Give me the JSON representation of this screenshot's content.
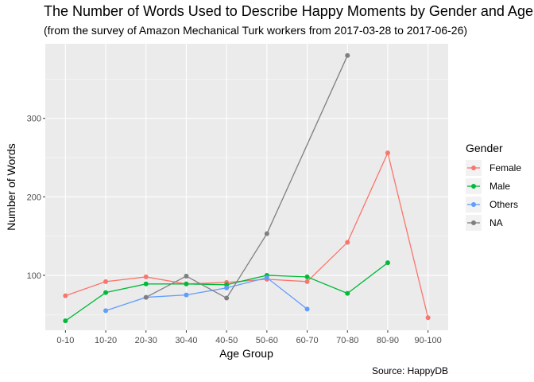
{
  "chart_data": {
    "type": "line",
    "title": "The Number of Words Used to Describe Happy Moments by Gender and Age",
    "subtitle": "(from the survey of Amazon Mechanical Turk workers from 2017-03-28 to 2017-06-26)",
    "caption": "Source: HappyDB",
    "xlabel": "Age Group",
    "ylabel": "Number of Words",
    "categories": [
      "0-10",
      "10-20",
      "20-30",
      "30-40",
      "40-50",
      "50-60",
      "60-70",
      "70-80",
      "80-90",
      "90-100"
    ],
    "y_ticks": [
      100,
      200,
      300
    ],
    "ylim": [
      30,
      395
    ],
    "grid": true,
    "legend": {
      "title": "Gender",
      "position": "right"
    },
    "series": [
      {
        "name": "Female",
        "color": "#F8766D",
        "values": [
          74,
          92,
          98,
          89,
          91,
          95,
          92,
          142,
          256,
          46
        ]
      },
      {
        "name": "Male",
        "color": "#00BA38",
        "values": [
          42,
          78,
          89,
          89,
          88,
          100,
          98,
          77,
          116,
          null
        ]
      },
      {
        "name": "Others",
        "color": "#619CFF",
        "values": [
          null,
          55,
          72,
          75,
          84,
          97,
          57,
          null,
          null,
          null
        ]
      },
      {
        "name": "NA",
        "color": "#7F7F7F",
        "values": [
          null,
          null,
          72,
          99,
          71,
          153,
          null,
          380,
          null,
          null
        ]
      }
    ]
  }
}
